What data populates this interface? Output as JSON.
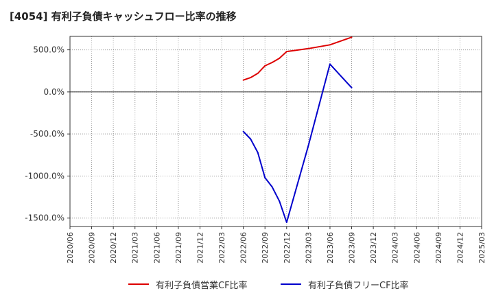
{
  "chart_data": {
    "type": "line",
    "title": "[4054]  有利子負債キャッシュフロー比率の推移",
    "xlabel": "",
    "ylabel": "",
    "ylim": [
      -1600,
      660
    ],
    "yticks": [
      500,
      0,
      -500,
      -1000,
      -1500
    ],
    "ytick_labels": [
      "500.0%",
      "0.0%",
      "-500.0%",
      "-1000.0%",
      "-1500.0%"
    ],
    "xtick_labels": [
      "2020/06",
      "2020/09",
      "2020/12",
      "2021/03",
      "2021/06",
      "2021/09",
      "2021/12",
      "2022/03",
      "2022/06",
      "2022/09",
      "2022/12",
      "2023/03",
      "2023/06",
      "2023/09",
      "2023/12",
      "2024/03",
      "2024/06",
      "2024/09",
      "2024/12",
      "2025/03"
    ],
    "grid": true,
    "legend_position": "bottom",
    "series": [
      {
        "name": "有利子負債営業CF比率",
        "color": "#dd0000",
        "points": [
          [
            "2022/06",
            140
          ],
          [
            "2022/07",
            170
          ],
          [
            "2022/08",
            220
          ],
          [
            "2022/09",
            310
          ],
          [
            "2022/10",
            350
          ],
          [
            "2022/11",
            400
          ],
          [
            "2022/12",
            480
          ],
          [
            "2023/03",
            515
          ],
          [
            "2023/06",
            560
          ],
          [
            "2023/09",
            650
          ]
        ]
      },
      {
        "name": "有利子負債フリーCF比率",
        "color": "#0000cc",
        "points": [
          [
            "2022/06",
            -470
          ],
          [
            "2022/07",
            -560
          ],
          [
            "2022/08",
            -720
          ],
          [
            "2022/09",
            -1020
          ],
          [
            "2022/10",
            -1130
          ],
          [
            "2022/11",
            -1300
          ],
          [
            "2022/12",
            -1550
          ],
          [
            "2023/03",
            -640
          ],
          [
            "2023/06",
            330
          ],
          [
            "2023/09",
            50
          ]
        ]
      }
    ]
  }
}
